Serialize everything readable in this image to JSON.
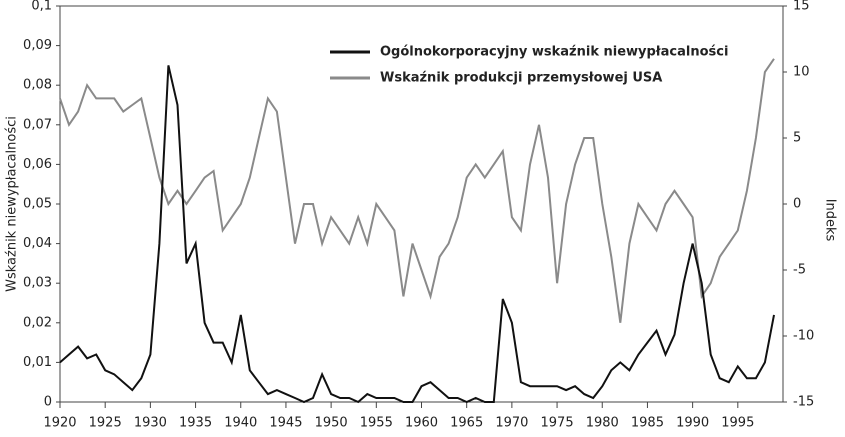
{
  "chart_data": {
    "type": "line",
    "x": [
      1920,
      1921,
      1922,
      1923,
      1924,
      1925,
      1926,
      1927,
      1928,
      1929,
      1930,
      1931,
      1932,
      1933,
      1934,
      1935,
      1936,
      1937,
      1938,
      1939,
      1940,
      1941,
      1942,
      1943,
      1944,
      1945,
      1946,
      1947,
      1948,
      1949,
      1950,
      1951,
      1952,
      1953,
      1954,
      1955,
      1956,
      1957,
      1958,
      1959,
      1960,
      1961,
      1962,
      1963,
      1964,
      1965,
      1966,
      1967,
      1968,
      1969,
      1970,
      1971,
      1972,
      1973,
      1974,
      1975,
      1976,
      1977,
      1978,
      1979,
      1980,
      1981,
      1982,
      1983,
      1984,
      1985,
      1986,
      1987,
      1988,
      1989,
      1990,
      1991,
      1992,
      1993,
      1994,
      1995,
      1996,
      1997,
      1998,
      1999
    ],
    "series": [
      {
        "name": "Ogólnokorporacyjny wskaźnik niewypłacalności",
        "color": "#111111",
        "values": [
          0.01,
          0.012,
          0.014,
          0.011,
          0.012,
          0.008,
          0.007,
          0.005,
          0.003,
          0.006,
          0.012,
          0.04,
          0.085,
          0.075,
          0.035,
          0.04,
          0.02,
          0.015,
          0.015,
          0.01,
          0.022,
          0.008,
          0.005,
          0.002,
          0.003,
          0.002,
          0.001,
          0.0,
          0.001,
          0.007,
          0.002,
          0.001,
          0.001,
          0.0,
          0.002,
          0.001,
          0.001,
          0.001,
          0.0,
          0.0,
          0.004,
          0.005,
          0.003,
          0.001,
          0.001,
          0.0,
          0.001,
          0.0,
          0.0,
          0.026,
          0.02,
          0.005,
          0.004,
          0.004,
          0.004,
          0.004,
          0.003,
          0.004,
          0.002,
          0.001,
          0.004,
          0.008,
          0.01,
          0.008,
          0.012,
          0.015,
          0.018,
          0.012,
          0.017,
          0.03,
          0.04,
          0.03,
          0.012,
          0.006,
          0.005,
          0.009,
          0.006,
          0.006,
          0.01,
          0.022
        ]
      },
      {
        "name": "Wskaźnik produkcji przemysłowej USA",
        "color": "#8a8a8a",
        "axis": "y2",
        "values": [
          8,
          6,
          7,
          9,
          8,
          8,
          8,
          7,
          7.5,
          8,
          5,
          2,
          0,
          1,
          0,
          1,
          2,
          2.5,
          -2,
          -1,
          0,
          2,
          5,
          8,
          7,
          2,
          -3,
          0,
          0,
          -3,
          -1,
          -2,
          -3,
          -1,
          -3,
          0,
          -1,
          -2,
          -7,
          -3,
          -5,
          -7,
          -4,
          -3,
          -1,
          2,
          3,
          2,
          3,
          4,
          -1,
          -2,
          3,
          6,
          2,
          -6,
          0,
          3,
          5,
          5,
          0,
          -4,
          -9,
          -3,
          0,
          -1,
          -2,
          0,
          1,
          0,
          -1,
          -7,
          -6,
          -4,
          -3,
          -2,
          1,
          5,
          10,
          11
        ]
      }
    ],
    "ylabel": "Wskaźnik niewypłacalności",
    "y2label": "Indeks",
    "xlim": [
      1920,
      2000
    ],
    "xticks": [
      1920,
      1925,
      1930,
      1935,
      1940,
      1945,
      1950,
      1955,
      1960,
      1965,
      1970,
      1975,
      1980,
      1985,
      1990,
      1995
    ],
    "ylim": [
      0,
      0.1
    ],
    "yticks": [
      0,
      {
        "value": 0.01,
        "label": "0,01"
      },
      {
        "value": 0.02,
        "label": "0,02"
      },
      {
        "value": 0.03,
        "label": "0,03"
      },
      {
        "value": 0.04,
        "label": "0,04"
      },
      {
        "value": 0.05,
        "label": "0,05"
      },
      {
        "value": 0.06,
        "label": "0,06"
      },
      {
        "value": 0.07,
        "label": "0,07"
      },
      {
        "value": 0.08,
        "label": "0,08"
      },
      {
        "value": 0.09,
        "label": "0,09"
      },
      {
        "value": 0.1,
        "label": "0,1"
      }
    ],
    "y2lim": [
      -15,
      15
    ],
    "y2ticks": [
      -15,
      -10,
      -5,
      0,
      5,
      10,
      15
    ],
    "legend": "top-center"
  }
}
